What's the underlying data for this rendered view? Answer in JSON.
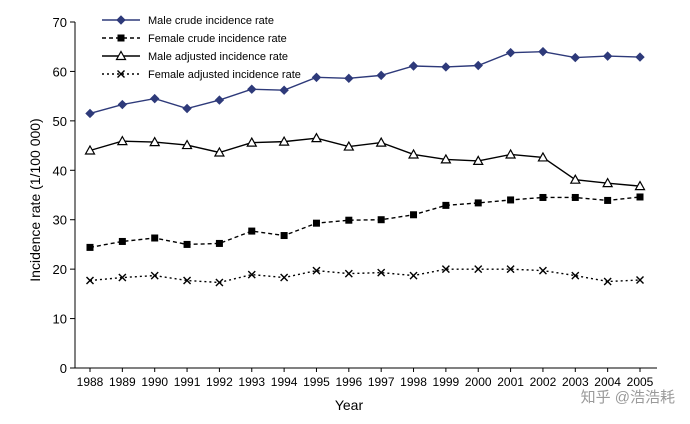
{
  "chart_data": {
    "type": "line",
    "title": "",
    "xlabel": "Year",
    "ylabel": "Incidence rate (1/100 000)",
    "ylim": [
      0,
      70
    ],
    "yticks": [
      0,
      10,
      20,
      30,
      40,
      50,
      60,
      70
    ],
    "grid": false,
    "legend_position": "top-left",
    "categories": [
      "1988",
      "1989",
      "1990",
      "1991",
      "1992",
      "1993",
      "1994",
      "1995",
      "1996",
      "1997",
      "1998",
      "1999",
      "2000",
      "2001",
      "2002",
      "2003",
      "2004",
      "2005"
    ],
    "series": [
      {
        "name": "Male crude incidence rate",
        "line": "solid",
        "marker": "diamond",
        "color": "#2e3a7a",
        "values": [
          51.5,
          53.3,
          54.5,
          52.5,
          54.2,
          56.4,
          56.2,
          58.8,
          58.6,
          59.2,
          61.1,
          60.9,
          61.2,
          63.8,
          64.0,
          62.8,
          63.1,
          62.9
        ]
      },
      {
        "name": "Female crude incidence rate",
        "line": "dashed",
        "marker": "square",
        "color": "#000000",
        "values": [
          24.4,
          25.6,
          26.3,
          25.0,
          25.2,
          27.7,
          26.8,
          29.3,
          29.9,
          30.0,
          31.0,
          32.9,
          33.4,
          34.0,
          34.5,
          34.5,
          33.9,
          34.6
        ]
      },
      {
        "name": "Male adjusted incidence rate",
        "line": "solid",
        "marker": "triangle",
        "color": "#000000",
        "values": [
          44.0,
          45.9,
          45.7,
          45.1,
          43.6,
          45.6,
          45.8,
          46.5,
          44.8,
          45.6,
          43.2,
          42.2,
          41.9,
          43.2,
          42.6,
          38.1,
          37.4,
          36.8
        ]
      },
      {
        "name": "Female adjusted incidence rate",
        "line": "dotted",
        "marker": "x",
        "color": "#000000",
        "values": [
          17.7,
          18.3,
          18.7,
          17.7,
          17.3,
          18.9,
          18.3,
          19.7,
          19.1,
          19.3,
          18.7,
          20.0,
          20.0,
          20.0,
          19.7,
          18.7,
          17.5,
          17.8
        ]
      }
    ]
  },
  "watermark": "知乎 @浩浩耗"
}
